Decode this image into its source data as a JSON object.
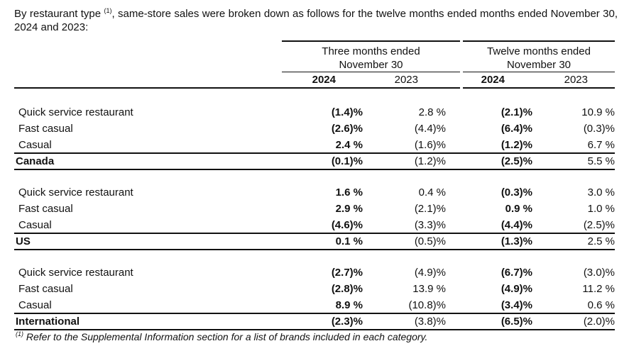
{
  "intro": {
    "text_before": "By restaurant type ",
    "footnote_ref": "(1)",
    "text_after": ", same-store sales were broken down as follows for the twelve months ended months ended November 30, 2024 and 2023:"
  },
  "header": {
    "group1": {
      "line1": "Three months ended",
      "line2": "November 30"
    },
    "group2": {
      "line1": "Twelve months ended",
      "line2": "November 30"
    },
    "years": [
      "2024",
      "2023",
      "2024",
      "2023"
    ]
  },
  "sections": [
    {
      "rows": [
        {
          "label": "Quick service restaurant",
          "values": [
            "(1.4)%",
            "2.8 %",
            "(2.1)%",
            "10.9 %"
          ]
        },
        {
          "label": "Fast casual",
          "values": [
            "(2.6)%",
            "(4.4)%",
            "(6.4)%",
            "(0.3)%"
          ]
        },
        {
          "label": "Casual",
          "values": [
            "2.4 %",
            "(1.6)%",
            "(1.2)%",
            "6.7 %"
          ]
        }
      ],
      "total": {
        "label": "Canada",
        "values": [
          "(0.1)%",
          "(1.2)%",
          "(2.5)%",
          "5.5 %"
        ]
      }
    },
    {
      "rows": [
        {
          "label": "Quick service restaurant",
          "values": [
            "1.6 %",
            "0.4 %",
            "(0.3)%",
            "3.0 %"
          ]
        },
        {
          "label": "Fast casual",
          "values": [
            "2.9 %",
            "(2.1)%",
            "0.9 %",
            "1.0 %"
          ]
        },
        {
          "label": "Casual",
          "values": [
            "(4.6)%",
            "(3.3)%",
            "(4.4)%",
            "(2.5)%"
          ]
        }
      ],
      "total": {
        "label": "US",
        "values": [
          "0.1 %",
          "(0.5)%",
          "(1.3)%",
          "2.5 %"
        ]
      }
    },
    {
      "rows": [
        {
          "label": "Quick service restaurant",
          "values": [
            "(2.7)%",
            "(4.9)%",
            "(6.7)%",
            "(3.0)%"
          ]
        },
        {
          "label": "Fast casual",
          "values": [
            "(2.8)%",
            "13.9 %",
            "(4.9)%",
            "11.2 %"
          ]
        },
        {
          "label": "Casual",
          "values": [
            "8.9 %",
            "(10.8)%",
            "(3.4)%",
            "0.6 %"
          ]
        }
      ],
      "total": {
        "label": "International",
        "values": [
          "(2.3)%",
          "(3.8)%",
          "(6.5)%",
          "(2.0)%"
        ]
      }
    }
  ],
  "footnote": {
    "ref": "(1)",
    "text": " Refer to the Supplemental Information section for a list of brands included in each category."
  }
}
